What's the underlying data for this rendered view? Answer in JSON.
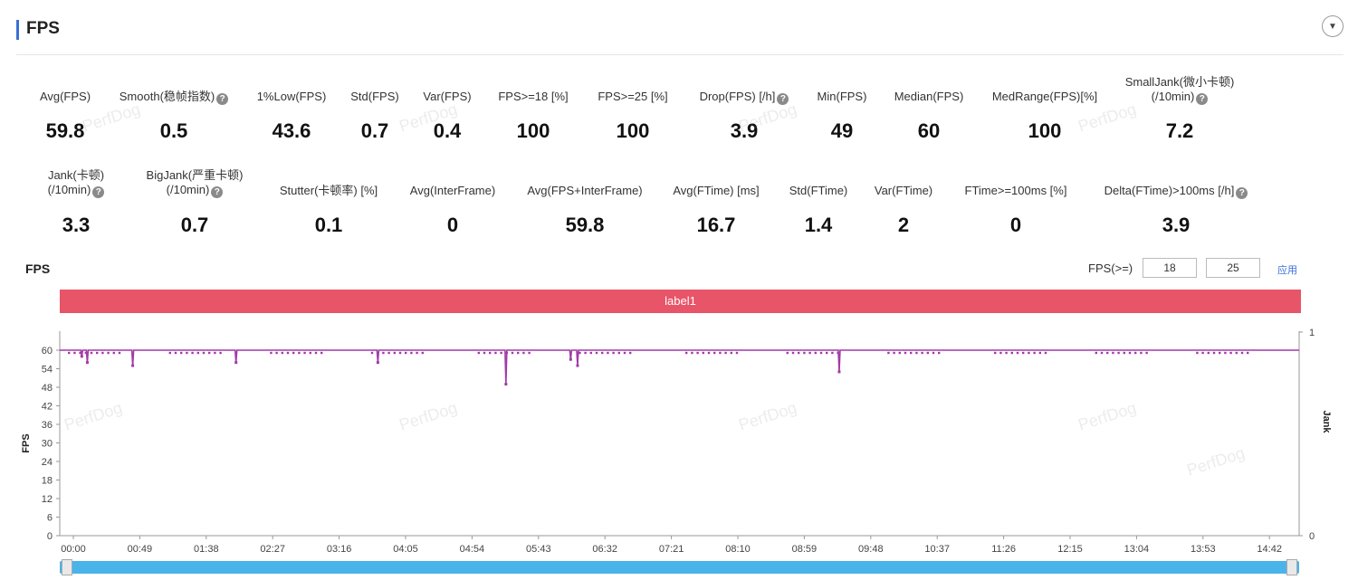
{
  "header": {
    "title": "FPS"
  },
  "metrics_row1": [
    {
      "label": "Avg(FPS)",
      "value": "59.8",
      "help": false
    },
    {
      "label": "Smooth(稳帧指数)",
      "value": "0.5",
      "help": true
    },
    {
      "label": "1%Low(FPS)",
      "value": "43.6",
      "help": false
    },
    {
      "label": "Std(FPS)",
      "value": "0.7",
      "help": false
    },
    {
      "label": "Var(FPS)",
      "value": "0.4",
      "help": false
    },
    {
      "label": "FPS>=18 [%]",
      "value": "100",
      "help": false
    },
    {
      "label": "FPS>=25 [%]",
      "value": "100",
      "help": false
    },
    {
      "label": "Drop(FPS) [/h]",
      "value": "3.9",
      "help": true
    },
    {
      "label": "Min(FPS)",
      "value": "49",
      "help": false
    },
    {
      "label": "Median(FPS)",
      "value": "60",
      "help": false
    },
    {
      "label": "MedRange(FPS)[%]",
      "value": "100",
      "help": false
    },
    {
      "label": "SmallJank(微小卡顿)",
      "label2": "(/10min)",
      "value": "7.2",
      "help": true
    }
  ],
  "metrics_row2": [
    {
      "label": "Jank(卡顿)",
      "label2": "(/10min)",
      "value": "3.3",
      "help": true
    },
    {
      "label": "BigJank(严重卡顿)",
      "label2": "(/10min)",
      "value": "0.7",
      "help": true
    },
    {
      "label": "Stutter(卡顿率) [%]",
      "value": "0.1",
      "help": false
    },
    {
      "label": "Avg(InterFrame)",
      "value": "0",
      "help": false
    },
    {
      "label": "Avg(FPS+InterFrame)",
      "value": "59.8",
      "help": false
    },
    {
      "label": "Avg(FTime) [ms]",
      "value": "16.7",
      "help": false
    },
    {
      "label": "Std(FTime)",
      "value": "1.4",
      "help": false
    },
    {
      "label": "Var(FTime)",
      "value": "2",
      "help": false
    },
    {
      "label": "FTime>=100ms [%]",
      "value": "0",
      "help": false
    },
    {
      "label": "Delta(FTime)>100ms [/h]",
      "value": "3.9",
      "help": true
    }
  ],
  "chart_controls": {
    "title": "FPS",
    "threshold_label": "FPS(>=)",
    "threshold1": "18",
    "threshold2": "25",
    "apply_label": "应用"
  },
  "label_bar": "label1",
  "watermark": "PerfDog",
  "colors": {
    "accent": "#3b6fd8",
    "label_bar": "#e85468",
    "series": "#a23aa8",
    "scrollbar": "#4ab3ea"
  },
  "chart_data": {
    "type": "line",
    "ylabel": "FPS",
    "y2label": "Jank",
    "ylim": [
      0,
      60
    ],
    "y2lim": [
      0,
      1
    ],
    "yticks": [
      "0",
      "6",
      "12",
      "18",
      "24",
      "30",
      "36",
      "42",
      "48",
      "54",
      "60"
    ],
    "y2ticks": [
      "0",
      "1"
    ],
    "xlabels": [
      "00:00",
      "00:49",
      "01:38",
      "02:27",
      "03:16",
      "04:05",
      "04:54",
      "05:43",
      "06:32",
      "07:21",
      "08:10",
      "08:59",
      "09:48",
      "10:37",
      "11:26",
      "12:15",
      "13:04",
      "13:53",
      "14:42"
    ],
    "xlim_seconds": [
      0,
      900
    ],
    "series": [
      {
        "baseline": 60,
        "dips": [
          {
            "t": 16,
            "fps": 58
          },
          {
            "t": 20,
            "fps": 56
          },
          {
            "t": 53,
            "fps": 55
          },
          {
            "t": 128,
            "fps": 56
          },
          {
            "t": 231,
            "fps": 56
          },
          {
            "t": 324,
            "fps": 49
          },
          {
            "t": 371,
            "fps": 57
          },
          {
            "t": 376,
            "fps": 55
          },
          {
            "t": 566,
            "fps": 53
          }
        ]
      }
    ]
  }
}
